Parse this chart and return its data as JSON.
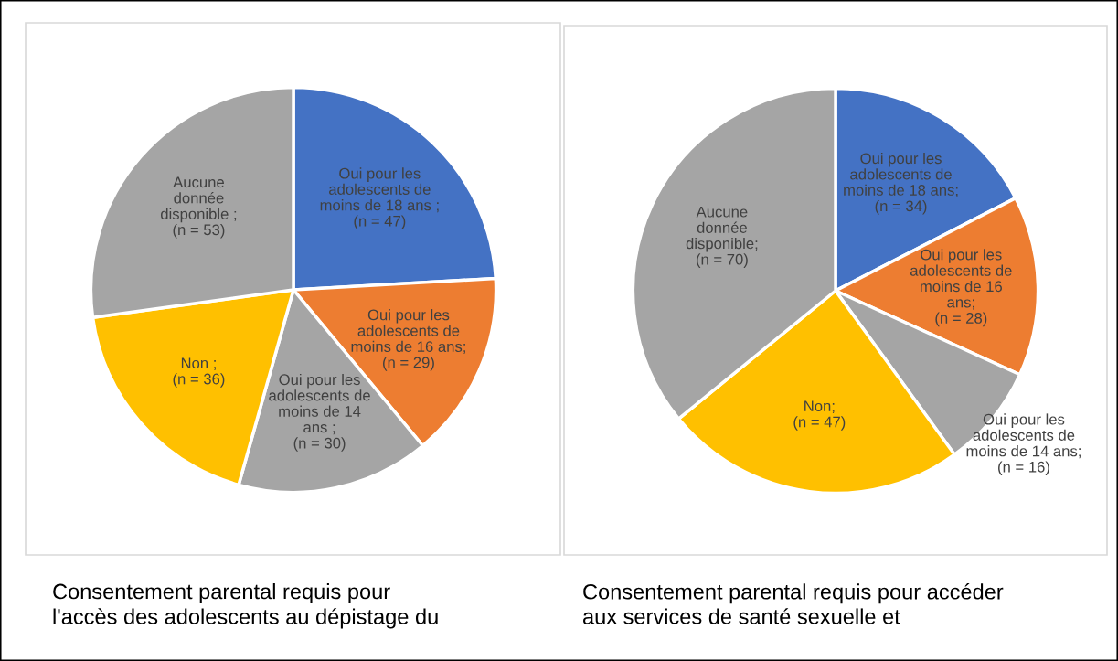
{
  "chart_data": [
    {
      "type": "pie",
      "categories": [
        "Oui pour les\nadolescents de\nmoins de 18 ans",
        "Oui pour les\nadolescents de\nmoins de 16 ans",
        "Oui pour les\nadolescents de\nmoins de 14\nans",
        "Non",
        "Aucune\ndonnée\ndisponible"
      ],
      "values": [
        47,
        29,
        30,
        36,
        53
      ],
      "colors": [
        "#4472c4",
        "#ed7d31",
        "#a5a5a5",
        "#ffc000",
        "#a5a5a5"
      ],
      "value_labels": [
        " ;\n(n = 47)",
        ";\n(n = 29)",
        " ;\n(n = 30)",
        " ;\n(n = 36)",
        " ;\n(n = 53)"
      ],
      "annotations": [
        "Consentement parental requis pour\nl'accès des adolescents au dépistage du"
      ]
    },
    {
      "type": "pie",
      "categories": [
        "Oui pour les\nadolescents de\nmoins de 18 ans",
        "Oui pour les\nadolescents de\nmoins de 16\nans",
        "Oui pour les\nadolescents de\nmoins de 14 ans",
        "Non",
        "Aucune\ndonnée\ndisponible"
      ],
      "values": [
        34,
        28,
        16,
        47,
        70
      ],
      "colors": [
        "#4472c4",
        "#ed7d31",
        "#a5a5a5",
        "#ffc000",
        "#a5a5a5"
      ],
      "value_labels": [
        ";\n(n = 34)",
        ";\n(n = 28)",
        ";\n(n = 16)",
        ";\n(n = 47)",
        ";\n(n = 70)"
      ],
      "annotations": [
        "Consentement parental requis pour accéder\naux services de santé sexuelle et"
      ]
    }
  ]
}
